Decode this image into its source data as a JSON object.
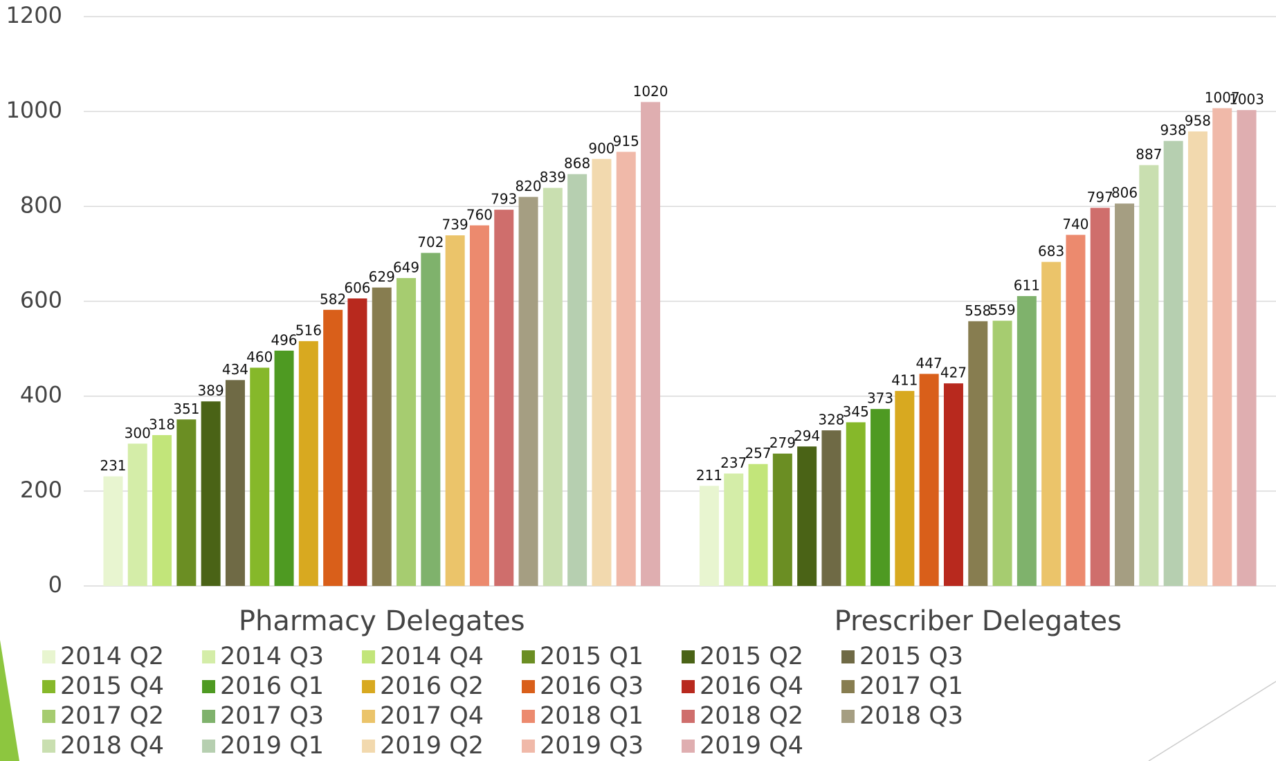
{
  "chart_data": {
    "type": "bar",
    "categories": [
      "Pharmacy Delegates",
      "Prescriber Delegates"
    ],
    "series": [
      {
        "name": "2014 Q2",
        "color": "#e8f5d0",
        "values": [
          231,
          211
        ]
      },
      {
        "name": "2014 Q3",
        "color": "#d4eda8",
        "values": [
          300,
          237
        ]
      },
      {
        "name": "2014 Q4",
        "color": "#c2e57a",
        "values": [
          318,
          257
        ]
      },
      {
        "name": "2015 Q1",
        "color": "#6b8e23",
        "values": [
          351,
          279
        ]
      },
      {
        "name": "2015 Q2",
        "color": "#4a6316",
        "values": [
          389,
          294
        ]
      },
      {
        "name": "2015 Q3",
        "color": "#6f6a45",
        "values": [
          434,
          328
        ]
      },
      {
        "name": "2015 Q4",
        "color": "#86b82a",
        "values": [
          460,
          345
        ]
      },
      {
        "name": "2016 Q1",
        "color": "#4e9a22",
        "values": [
          496,
          373
        ]
      },
      {
        "name": "2016 Q2",
        "color": "#d8a920",
        "values": [
          516,
          411
        ]
      },
      {
        "name": "2016 Q3",
        "color": "#d95f1a",
        "values": [
          582,
          447
        ]
      },
      {
        "name": "2016 Q4",
        "color": "#b8291e",
        "values": [
          606,
          427
        ]
      },
      {
        "name": "2017 Q1",
        "color": "#877d50",
        "values": [
          629,
          558
        ]
      },
      {
        "name": "2017 Q2",
        "color": "#a6cc70",
        "values": [
          649,
          559
        ]
      },
      {
        "name": "2017 Q3",
        "color": "#7fb26c",
        "values": [
          702,
          611
        ]
      },
      {
        "name": "2017 Q4",
        "color": "#ebc46a",
        "values": [
          739,
          683
        ]
      },
      {
        "name": "2018 Q1",
        "color": "#ec8a6e",
        "values": [
          760,
          740
        ]
      },
      {
        "name": "2018 Q2",
        "color": "#cf6e6c",
        "values": [
          793,
          797
        ]
      },
      {
        "name": "2018 Q3",
        "color": "#a59e82",
        "values": [
          820,
          806
        ]
      },
      {
        "name": "2018 Q4",
        "color": "#c9dfb0",
        "values": [
          839,
          887
        ]
      },
      {
        "name": "2019 Q1",
        "color": "#b6cfb0",
        "values": [
          868,
          938
        ]
      },
      {
        "name": "2019 Q2",
        "color": "#f2d9ae",
        "values": [
          900,
          958
        ]
      },
      {
        "name": "2019 Q3",
        "color": "#f0b9a9",
        "values": [
          915,
          1007
        ]
      },
      {
        "name": "2019 Q4",
        "color": "#dfaeb0",
        "values": [
          1020,
          1003
        ]
      }
    ],
    "ylim": [
      0,
      1200
    ],
    "yticks": [
      0,
      200,
      400,
      600,
      800,
      1000,
      1200
    ],
    "grid": true,
    "legend": "bottom"
  }
}
